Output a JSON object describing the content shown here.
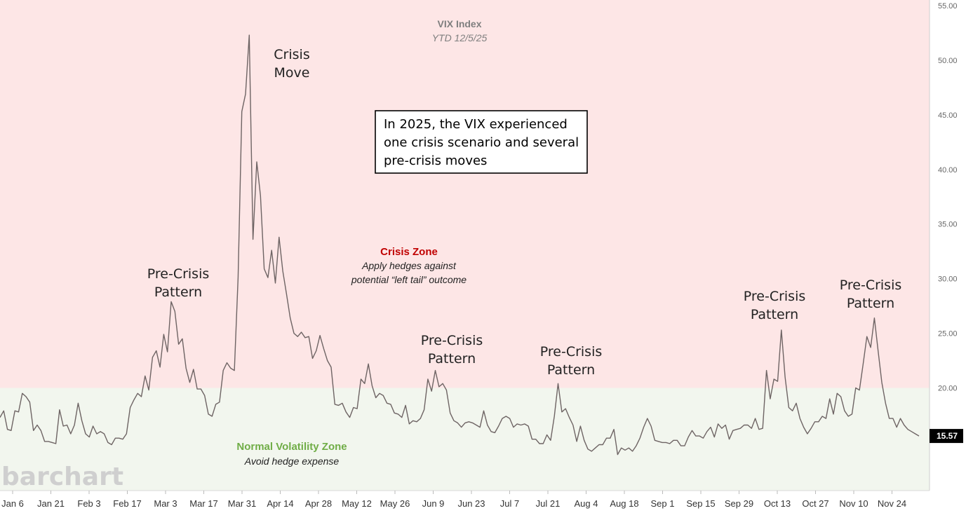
{
  "chart_data": {
    "type": "line",
    "title": "VIX Index",
    "subtitle": "YTD 12/5/25",
    "x_tick_labels": [
      "Jan 6",
      "Jan 21",
      "Feb 3",
      "Feb 17",
      "Mar 3",
      "Mar 17",
      "Mar 31",
      "Apr 14",
      "Apr 28",
      "May 12",
      "May 26",
      "Jun 9",
      "Jun 23",
      "Jul 7",
      "Jul 21",
      "Aug 4",
      "Aug 18",
      "Sep 1",
      "Sep 15",
      "Sep 29",
      "Oct 13",
      "Oct 27",
      "Nov 10",
      "Nov 24"
    ],
    "y_tick_labels": [
      "55.00",
      "50.00",
      "45.00",
      "40.00",
      "35.00",
      "30.00",
      "25.00",
      "20.00"
    ],
    "ylim": [
      10.6,
      55.0
    ],
    "last_value_label": "15.57",
    "series": [
      {
        "values": [
          17.3,
          17.9,
          16.2,
          16.1,
          17.9,
          17.8,
          19.5,
          19.2,
          18.7,
          16.1,
          16.6,
          16.1,
          15.1,
          15.1,
          15.0,
          14.9,
          18.0,
          16.5,
          16.6,
          15.8,
          16.6,
          18.6,
          17.0,
          15.8,
          15.5,
          16.5,
          15.8,
          16.0,
          15.8,
          15.0,
          14.8,
          15.4,
          15.4,
          15.3,
          15.8,
          18.2,
          18.9,
          19.5,
          19.2,
          21.1,
          19.8,
          22.8,
          23.4,
          21.9,
          24.9,
          23.3,
          27.9,
          27.0,
          24.0,
          24.5,
          21.8,
          20.5,
          21.7,
          19.9,
          19.9,
          19.3,
          17.6,
          17.4,
          18.5,
          18.7,
          21.6,
          22.3,
          21.8,
          21.6,
          30.1,
          45.3,
          46.9,
          52.3,
          33.6,
          40.7,
          37.6,
          30.9,
          30.1,
          32.6,
          29.6,
          33.8,
          30.7,
          28.6,
          26.4,
          25.0,
          24.7,
          25.1,
          24.6,
          24.7,
          22.7,
          23.4,
          24.8,
          23.6,
          22.5,
          21.9,
          18.5,
          18.4,
          18.6,
          17.8,
          17.3,
          18.2,
          18.1,
          20.8,
          20.4,
          22.2,
          20.2,
          19.1,
          19.5,
          19.3,
          18.6,
          18.5,
          17.7,
          17.6,
          17.3,
          18.4,
          16.7,
          17.0,
          16.9,
          17.2,
          18.0,
          20.8,
          19.7,
          21.6,
          20.1,
          20.4,
          19.8,
          17.7,
          17.0,
          16.8,
          16.4,
          16.8,
          16.9,
          16.8,
          16.6,
          16.4,
          17.9,
          16.6,
          16.0,
          15.9,
          16.5,
          17.2,
          17.4,
          17.2,
          16.4,
          16.7,
          16.6,
          16.7,
          16.5,
          15.3,
          15.3,
          14.9,
          14.9,
          15.7,
          15.2,
          17.4,
          20.4,
          17.8,
          18.1,
          17.3,
          16.6,
          15.1,
          16.5,
          15.2,
          14.4,
          14.2,
          14.5,
          14.8,
          14.8,
          15.4,
          15.4,
          16.2,
          13.9,
          14.5,
          14.3,
          14.5,
          14.2,
          14.7,
          15.4,
          16.4,
          17.2,
          16.5,
          15.2,
          15.1,
          15.0,
          15.0,
          14.9,
          15.2,
          15.2,
          14.7,
          14.7,
          15.5,
          16.1,
          15.6,
          15.6,
          15.4,
          16.0,
          16.4,
          15.5,
          16.7,
          16.3,
          16.6,
          15.3,
          16.1,
          16.2,
          16.3,
          16.6,
          16.6,
          16.3,
          17.2,
          16.2,
          16.3,
          21.6,
          19.0,
          20.8,
          20.6,
          25.3,
          21.0,
          18.2,
          17.9,
          18.6,
          17.2,
          16.4,
          15.8,
          16.3,
          16.9,
          16.9,
          17.4,
          17.2,
          19.0,
          17.6,
          19.5,
          19.2,
          17.9,
          17.4,
          17.6,
          20.0,
          19.8,
          22.2,
          24.7,
          23.7,
          26.4,
          23.4,
          20.5,
          18.6,
          17.2,
          17.2,
          16.4,
          17.2,
          16.6,
          16.2,
          16.0,
          15.8,
          15.6
        ]
      }
    ],
    "annotations": {
      "crisis_move": "Crisis\nMove",
      "pre_crisis": "Pre-Crisis\nPattern",
      "callout": "In 2025, the VIX experienced\none crisis scenario and several\npre-crisis moves",
      "crisis_zone_title": "Crisis Zone",
      "crisis_zone_desc": "Apply hedges against\npotential “left tail” outcome",
      "normal_zone_title": "Normal Volatility Zone",
      "normal_zone_desc": "Avoid hedge expense"
    },
    "watermark": "barchart",
    "colors": {
      "crisis_zone": "#fde6e6",
      "normal_zone": "#f2f6ee",
      "line": "#6e6464",
      "crisis_label": "#c00000",
      "normal_label": "#70ad47"
    }
  }
}
